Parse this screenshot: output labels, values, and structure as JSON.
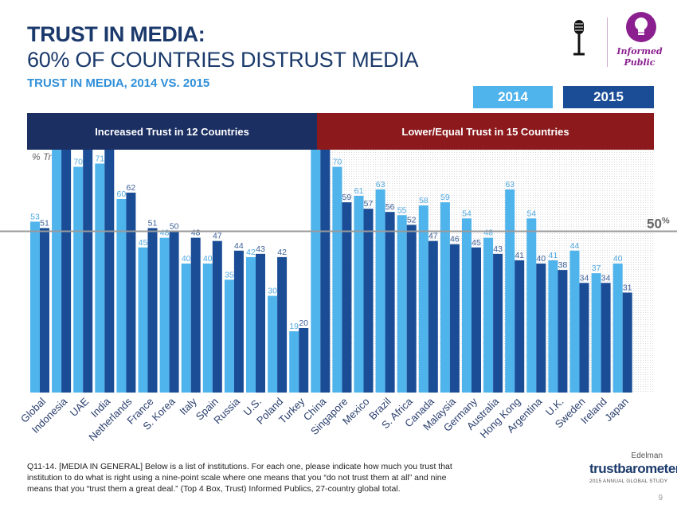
{
  "header": {
    "title_line1": "TRUST IN MEDIA:",
    "title_line2": "60% OF COUNTRIES DISTRUST MEDIA",
    "subtitle": "TRUST IN MEDIA, 2014 VS. 2015"
  },
  "legend": {
    "year_2014": "2014",
    "year_2015": "2015",
    "color_2014": "#4fb3ec",
    "color_2015": "#1a4d96"
  },
  "bands": {
    "increased": "Increased Trust in 12 Countries",
    "decreased": "Lower/Equal Trust in 15 Countries",
    "increased_color": "#1b2f63",
    "decreased_color": "#8c1a1d"
  },
  "axis_note": "% Trust",
  "threshold": {
    "value": 50,
    "label": "50",
    "unit": "%"
  },
  "logo": {
    "informed_public": "Informed Public",
    "edelman": "Edelman",
    "brand": "trustbarometer",
    "brand_sub": "2015 ANNUAL GLOBAL STUDY"
  },
  "footnote": "Q11-14. [MEDIA IN GENERAL] Below is a list of institutions. For each one, please indicate how much you trust that institution to do what is right using a nine-point scale where one means that you “do not trust them at all” and nine means that you “trust them a great deal.” (Top 4 Box, Trust) Informed Publics, 27-country global total.",
  "page_number": "9",
  "chart_data": {
    "type": "bar",
    "ylim": [
      0,
      100
    ],
    "categories": [
      "Global",
      "Indonesia",
      "UAE",
      "India",
      "Netherlands",
      "France",
      "S. Korea",
      "Italy",
      "Spain",
      "Russia",
      "U.S.",
      "Poland",
      "Turkey",
      "China",
      "Singapore",
      "Mexico",
      "Brazil",
      "S. Africa",
      "Canada",
      "Malaysia",
      "Germany",
      "Australia",
      "Hong Kong",
      "Argentina",
      "U.K.",
      "Sweden",
      "Ireland",
      "Japan"
    ],
    "series": [
      {
        "name": "2014",
        "values": [
          53,
          78,
          70,
          71,
          60,
          45,
          48,
          40,
          40,
          35,
          42,
          30,
          19,
          79,
          70,
          61,
          63,
          55,
          58,
          59,
          54,
          48,
          63,
          54,
          41,
          44,
          37,
          40
        ]
      },
      {
        "name": "2015",
        "values": [
          51,
          80,
          79,
          76,
          62,
          51,
          50,
          48,
          47,
          44,
          43,
          42,
          20,
          77,
          59,
          57,
          56,
          52,
          47,
          46,
          45,
          43,
          41,
          40,
          38,
          34,
          34,
          31
        ]
      }
    ]
  }
}
